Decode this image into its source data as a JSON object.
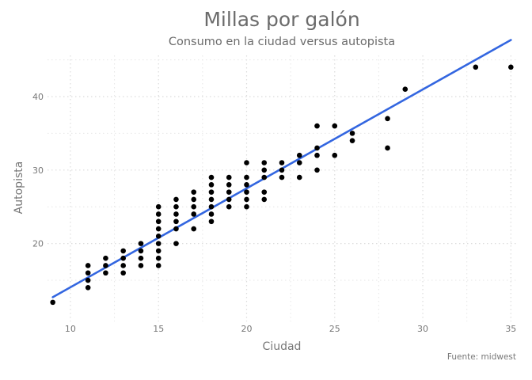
{
  "chart_data": {
    "type": "scatter",
    "title": "Millas por galón",
    "subtitle": "Consumo en la ciudad versus autopista",
    "xlabel": "Ciudad",
    "ylabel": "Autopista",
    "caption": "Fuente: midwest",
    "xlim": [
      8.7,
      35.3
    ],
    "ylim": [
      9.4,
      45.6
    ],
    "xticks": [
      10,
      15,
      20,
      25,
      30,
      35
    ],
    "yticks": [
      20,
      30,
      40
    ],
    "grid": true,
    "points": [
      [
        9,
        12
      ],
      [
        11,
        14
      ],
      [
        11,
        15
      ],
      [
        11,
        16
      ],
      [
        11,
        17
      ],
      [
        12,
        16
      ],
      [
        12,
        17
      ],
      [
        12,
        18
      ],
      [
        13,
        16
      ],
      [
        13,
        17
      ],
      [
        13,
        18
      ],
      [
        13,
        19
      ],
      [
        14,
        17
      ],
      [
        14,
        18
      ],
      [
        14,
        19
      ],
      [
        14,
        20
      ],
      [
        15,
        17
      ],
      [
        15,
        18
      ],
      [
        15,
        19
      ],
      [
        15,
        20
      ],
      [
        15,
        21
      ],
      [
        15,
        22
      ],
      [
        15,
        23
      ],
      [
        15,
        24
      ],
      [
        15,
        25
      ],
      [
        16,
        20
      ],
      [
        16,
        22
      ],
      [
        16,
        23
      ],
      [
        16,
        24
      ],
      [
        16,
        25
      ],
      [
        16,
        26
      ],
      [
        17,
        22
      ],
      [
        17,
        24
      ],
      [
        17,
        25
      ],
      [
        17,
        26
      ],
      [
        17,
        27
      ],
      [
        18,
        23
      ],
      [
        18,
        24
      ],
      [
        18,
        25
      ],
      [
        18,
        26
      ],
      [
        18,
        27
      ],
      [
        18,
        28
      ],
      [
        18,
        29
      ],
      [
        19,
        25
      ],
      [
        19,
        26
      ],
      [
        19,
        27
      ],
      [
        19,
        28
      ],
      [
        19,
        29
      ],
      [
        20,
        25
      ],
      [
        20,
        26
      ],
      [
        20,
        27
      ],
      [
        20,
        28
      ],
      [
        20,
        29
      ],
      [
        20,
        31
      ],
      [
        21,
        26
      ],
      [
        21,
        27
      ],
      [
        21,
        29
      ],
      [
        21,
        30
      ],
      [
        21,
        31
      ],
      [
        22,
        29
      ],
      [
        22,
        30
      ],
      [
        22,
        31
      ],
      [
        23,
        29
      ],
      [
        23,
        31
      ],
      [
        23,
        32
      ],
      [
        24,
        30
      ],
      [
        24,
        32
      ],
      [
        24,
        33
      ],
      [
        24,
        36
      ],
      [
        25,
        32
      ],
      [
        25,
        36
      ],
      [
        26,
        34
      ],
      [
        26,
        35
      ],
      [
        28,
        33
      ],
      [
        28,
        37
      ],
      [
        29,
        41
      ],
      [
        33,
        44
      ],
      [
        35,
        44
      ]
    ],
    "trendline": {
      "type": "linear",
      "x": [
        9,
        35
      ],
      "y": [
        12.7,
        47.7
      ],
      "color": "#3366e0"
    },
    "point_color": "#000000"
  }
}
